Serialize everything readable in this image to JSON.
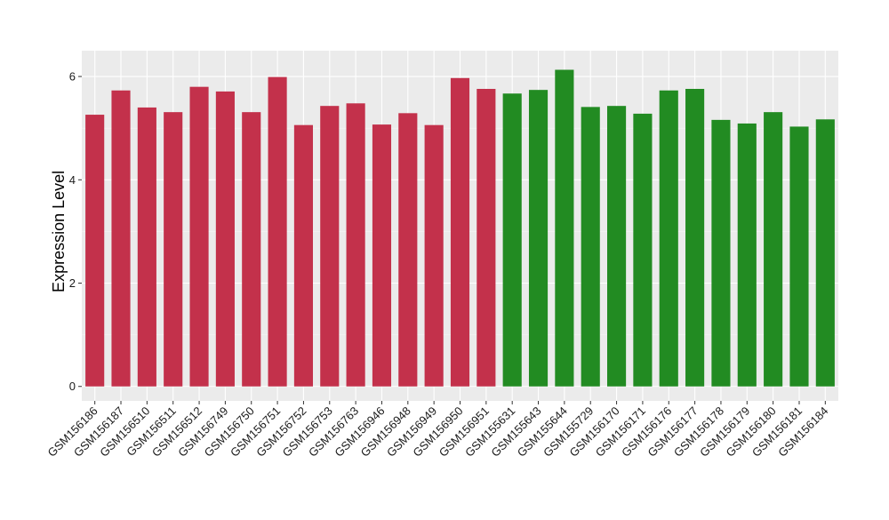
{
  "chart_data": {
    "type": "bar",
    "ylabel": "Expression Level",
    "xlabel": "",
    "ylim": [
      -0.28,
      6.5
    ],
    "yticks": [
      0,
      2,
      4,
      6
    ],
    "grid": true,
    "legend": "none",
    "group_colors": {
      "group1": "#c3314b",
      "group2": "#228b22"
    },
    "background": "#ebebeb",
    "categories": [
      "GSM156186",
      "GSM156187",
      "GSM156510",
      "GSM156511",
      "GSM156512",
      "GSM156749",
      "GSM156750",
      "GSM156751",
      "GSM156752",
      "GSM156753",
      "GSM156763",
      "GSM156946",
      "GSM156948",
      "GSM156949",
      "GSM156950",
      "GSM156951",
      "GSM155631",
      "GSM155643",
      "GSM155644",
      "GSM155729",
      "GSM156170",
      "GSM156171",
      "GSM156176",
      "GSM156177",
      "GSM156178",
      "GSM156179",
      "GSM156180",
      "GSM156181",
      "GSM156184"
    ],
    "values": [
      5.26,
      5.73,
      5.4,
      5.31,
      5.8,
      5.71,
      5.31,
      5.99,
      5.06,
      5.43,
      5.48,
      5.07,
      5.29,
      5.06,
      5.97,
      5.76,
      5.67,
      5.74,
      6.13,
      5.41,
      5.43,
      5.28,
      5.73,
      5.76,
      5.16,
      5.09,
      5.31,
      5.03,
      5.17
    ],
    "groups": [
      "group1",
      "group1",
      "group1",
      "group1",
      "group1",
      "group1",
      "group1",
      "group1",
      "group1",
      "group1",
      "group1",
      "group1",
      "group1",
      "group1",
      "group1",
      "group1",
      "group2",
      "group2",
      "group2",
      "group2",
      "group2",
      "group2",
      "group2",
      "group2",
      "group2",
      "group2",
      "group2",
      "group2",
      "group2"
    ]
  }
}
